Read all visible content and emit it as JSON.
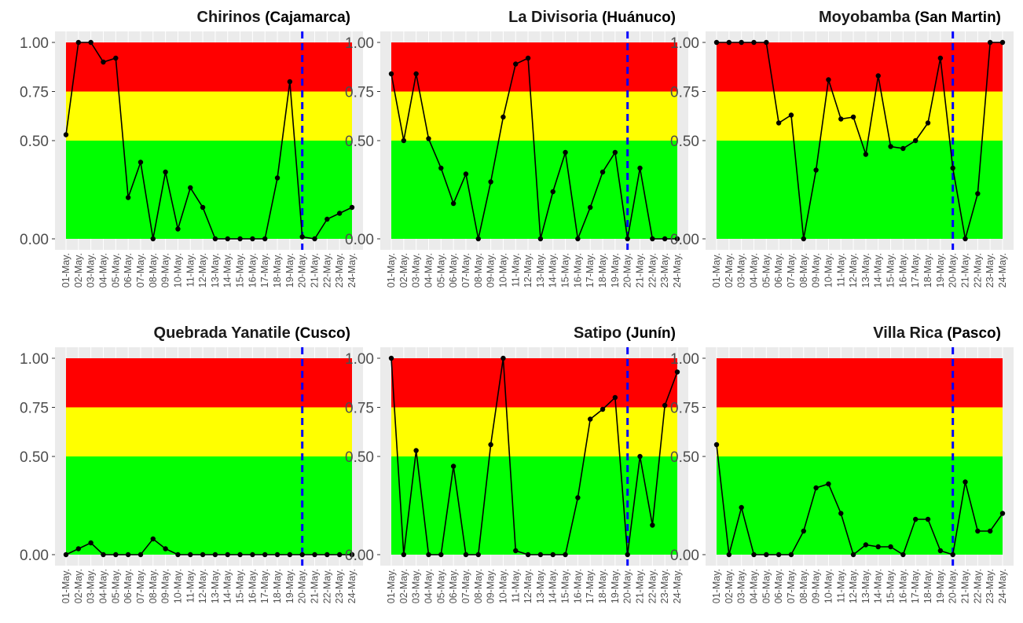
{
  "chart_data": [
    {
      "type": "line",
      "title": "Chirinos",
      "subtitle": "(Cajamarca)",
      "categories": [
        "01-May.",
        "02-May.",
        "03-May.",
        "04-May.",
        "05-May.",
        "06-May.",
        "07-May.",
        "08-May.",
        "09-May.",
        "10-May.",
        "11-May.",
        "12-May.",
        "13-May.",
        "14-May.",
        "15-May.",
        "16-May.",
        "17-May.",
        "18-May.",
        "19-May.",
        "20-May.",
        "21-May.",
        "22-May.",
        "23-May.",
        "24-May."
      ],
      "values": [
        0.53,
        1.0,
        1.0,
        0.9,
        0.92,
        0.21,
        0.39,
        0.0,
        0.34,
        0.05,
        0.26,
        0.16,
        0.0,
        0.0,
        0.0,
        0.0,
        0.0,
        0.31,
        0.8,
        0.01,
        0.0,
        0.1,
        0.13,
        0.16
      ],
      "yticks": [
        "0.00",
        "0.50",
        "0.75",
        "1.00"
      ],
      "ylim": [
        0,
        1
      ],
      "bands": [
        {
          "from": 0,
          "to": 0.5,
          "color": "#00ff00"
        },
        {
          "from": 0.5,
          "to": 0.75,
          "color": "#ffff00"
        },
        {
          "from": 0.75,
          "to": 1.0,
          "color": "#ff0000"
        }
      ],
      "vline": "20-May.",
      "vline_color": "#0000ff",
      "grid": true
    },
    {
      "type": "line",
      "title": "La Divisoria",
      "subtitle": "(Huánuco)",
      "categories": [
        "01-May.",
        "02-May.",
        "03-May.",
        "04-May.",
        "05-May.",
        "06-May.",
        "07-May.",
        "08-May.",
        "09-May.",
        "10-May.",
        "11-May.",
        "12-May.",
        "13-May.",
        "14-May.",
        "15-May.",
        "16-May.",
        "17-May.",
        "18-May.",
        "19-May.",
        "20-May.",
        "21-May.",
        "22-May.",
        "23-May.",
        "24-May."
      ],
      "values": [
        0.84,
        0.5,
        0.84,
        0.51,
        0.36,
        0.18,
        0.33,
        0.0,
        0.29,
        0.62,
        0.89,
        0.92,
        0.0,
        0.24,
        0.44,
        0.0,
        0.16,
        0.34,
        0.44,
        0.0,
        0.36,
        0.0,
        0.0,
        0.0
      ],
      "yticks": [
        "0.00",
        "0.50",
        "0.75",
        "1.00"
      ],
      "ylim": [
        0,
        1
      ],
      "bands": [
        {
          "from": 0,
          "to": 0.5,
          "color": "#00ff00"
        },
        {
          "from": 0.5,
          "to": 0.75,
          "color": "#ffff00"
        },
        {
          "from": 0.75,
          "to": 1.0,
          "color": "#ff0000"
        }
      ],
      "vline": "20-May.",
      "vline_color": "#0000ff",
      "grid": true
    },
    {
      "type": "line",
      "title": "Moyobamba",
      "subtitle": "(San Martin)",
      "categories": [
        "01-May.",
        "02-May.",
        "03-May.",
        "04-May.",
        "05-May.",
        "06-May.",
        "07-May.",
        "08-May.",
        "09-May.",
        "10-May.",
        "11-May.",
        "12-May.",
        "13-May.",
        "14-May.",
        "15-May.",
        "16-May.",
        "17-May.",
        "18-May.",
        "19-May.",
        "20-May.",
        "21-May.",
        "22-May.",
        "23-May.",
        "24-May."
      ],
      "values": [
        1.0,
        1.0,
        1.0,
        1.0,
        1.0,
        0.59,
        0.63,
        0.0,
        0.35,
        0.81,
        0.61,
        0.62,
        0.43,
        0.83,
        0.47,
        0.46,
        0.5,
        0.59,
        0.92,
        0.36,
        0.0,
        0.23,
        1.0,
        1.0
      ],
      "yticks": [
        "0.00",
        "0.50",
        "0.75",
        "1.00"
      ],
      "ylim": [
        0,
        1
      ],
      "bands": [
        {
          "from": 0,
          "to": 0.5,
          "color": "#00ff00"
        },
        {
          "from": 0.5,
          "to": 0.75,
          "color": "#ffff00"
        },
        {
          "from": 0.75,
          "to": 1.0,
          "color": "#ff0000"
        }
      ],
      "vline": "20-May.",
      "vline_color": "#0000ff",
      "grid": true
    },
    {
      "type": "line",
      "title": "Quebrada Yanatile",
      "subtitle": "(Cusco)",
      "categories": [
        "01-May.",
        "02-May.",
        "03-May.",
        "04-May.",
        "05-May.",
        "06-May.",
        "07-May.",
        "08-May.",
        "09-May.",
        "10-May.",
        "11-May.",
        "12-May.",
        "13-May.",
        "14-May.",
        "15-May.",
        "16-May.",
        "17-May.",
        "18-May.",
        "19-May.",
        "20-May.",
        "21-May.",
        "22-May.",
        "23-May.",
        "24-May."
      ],
      "values": [
        0.0,
        0.03,
        0.06,
        0.0,
        0.0,
        0.0,
        0.0,
        0.08,
        0.03,
        0.0,
        0.0,
        0.0,
        0.0,
        0.0,
        0.0,
        0.0,
        0.0,
        0.0,
        0.0,
        0.0,
        0.0,
        0.0,
        0.0,
        0.0
      ],
      "yticks": [
        "0.00",
        "0.50",
        "0.75",
        "1.00"
      ],
      "ylim": [
        0,
        1
      ],
      "bands": [
        {
          "from": 0,
          "to": 0.5,
          "color": "#00ff00"
        },
        {
          "from": 0.5,
          "to": 0.75,
          "color": "#ffff00"
        },
        {
          "from": 0.75,
          "to": 1.0,
          "color": "#ff0000"
        }
      ],
      "vline": "20-May.",
      "vline_color": "#0000ff",
      "grid": true
    },
    {
      "type": "line",
      "title": "Satipo",
      "subtitle": "(Junín)",
      "categories": [
        "01-May.",
        "02-May.",
        "03-May.",
        "04-May.",
        "05-May.",
        "06-May.",
        "07-May.",
        "08-May.",
        "09-May.",
        "10-May.",
        "11-May.",
        "12-May.",
        "13-May.",
        "14-May.",
        "15-May.",
        "16-May.",
        "17-May.",
        "18-May.",
        "19-May.",
        "20-May.",
        "21-May.",
        "22-May.",
        "23-May.",
        "24-May."
      ],
      "values": [
        1.0,
        0.0,
        0.53,
        0.0,
        0.0,
        0.45,
        0.0,
        0.0,
        0.56,
        1.0,
        0.02,
        0.0,
        0.0,
        0.0,
        0.0,
        0.29,
        0.69,
        0.74,
        0.8,
        0.0,
        0.5,
        0.15,
        0.76,
        0.93
      ],
      "yticks": [
        "0.00",
        "0.50",
        "0.75",
        "1.00"
      ],
      "ylim": [
        0,
        1
      ],
      "bands": [
        {
          "from": 0,
          "to": 0.5,
          "color": "#00ff00"
        },
        {
          "from": 0.5,
          "to": 0.75,
          "color": "#ffff00"
        },
        {
          "from": 0.75,
          "to": 1.0,
          "color": "#ff0000"
        }
      ],
      "vline": "20-May.",
      "vline_color": "#0000ff",
      "grid": true
    },
    {
      "type": "line",
      "title": "Villa Rica",
      "subtitle": "(Pasco)",
      "categories": [
        "01-May.",
        "02-May.",
        "03-May.",
        "04-May.",
        "05-May.",
        "06-May.",
        "07-May.",
        "08-May.",
        "09-May.",
        "10-May.",
        "11-May.",
        "12-May.",
        "13-May.",
        "14-May.",
        "15-May.",
        "16-May.",
        "17-May.",
        "18-May.",
        "19-May.",
        "20-May.",
        "21-May.",
        "22-May.",
        "23-May.",
        "24-May."
      ],
      "values": [
        0.56,
        0.0,
        0.24,
        0.0,
        0.0,
        0.0,
        0.0,
        0.12,
        0.34,
        0.36,
        0.21,
        0.0,
        0.05,
        0.04,
        0.04,
        0.0,
        0.18,
        0.18,
        0.02,
        0.0,
        0.37,
        0.12,
        0.12,
        0.21
      ],
      "yticks": [
        "0.00",
        "0.50",
        "0.75",
        "1.00"
      ],
      "ylim": [
        0,
        1
      ],
      "bands": [
        {
          "from": 0,
          "to": 0.5,
          "color": "#00ff00"
        },
        {
          "from": 0.5,
          "to": 0.75,
          "color": "#ffff00"
        },
        {
          "from": 0.75,
          "to": 1.0,
          "color": "#ff0000"
        }
      ],
      "vline": "20-May.",
      "vline_color": "#0000ff",
      "grid": true
    }
  ]
}
